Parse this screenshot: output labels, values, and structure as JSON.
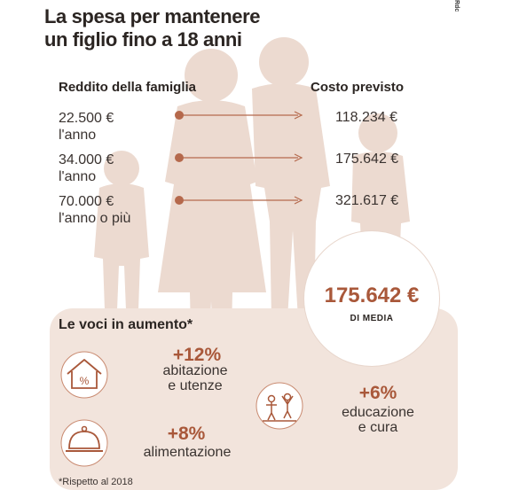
{
  "title": {
    "line1": "La spesa per mantenere",
    "line2": "un figlio fino a 18 anni"
  },
  "side_credit": "Rdc",
  "columns": {
    "left": "Reddito della famiglia",
    "right": "Costo previsto"
  },
  "rows": [
    {
      "income": "22.500 €",
      "period": "l'anno",
      "cost": "118.234 €"
    },
    {
      "income": "34.000 €",
      "period": "l'anno",
      "cost": "175.642 €"
    },
    {
      "income": "70.000 €",
      "period": "l'anno o più",
      "cost": "321.617 €"
    }
  ],
  "average": {
    "value": "175.642 €",
    "label": "DI MEDIA"
  },
  "increases": {
    "title": "Le voci in aumento*",
    "items": [
      {
        "pct": "+12%",
        "label1": "abitazione",
        "label2": "e utenze",
        "icon": "house-percent-icon"
      },
      {
        "pct": "+8%",
        "label1": "alimentazione",
        "label2": "",
        "icon": "food-cloche-icon"
      },
      {
        "pct": "+6%",
        "label1": "educazione",
        "label2": "e cura",
        "icon": "children-playing-icon"
      }
    ]
  },
  "footnote": "*Rispetto al 2018",
  "colors": {
    "accent": "#a9583a",
    "silhouette": "#e8d3c8",
    "panel": "#f2e4dc",
    "arrow": "#b5694c"
  }
}
